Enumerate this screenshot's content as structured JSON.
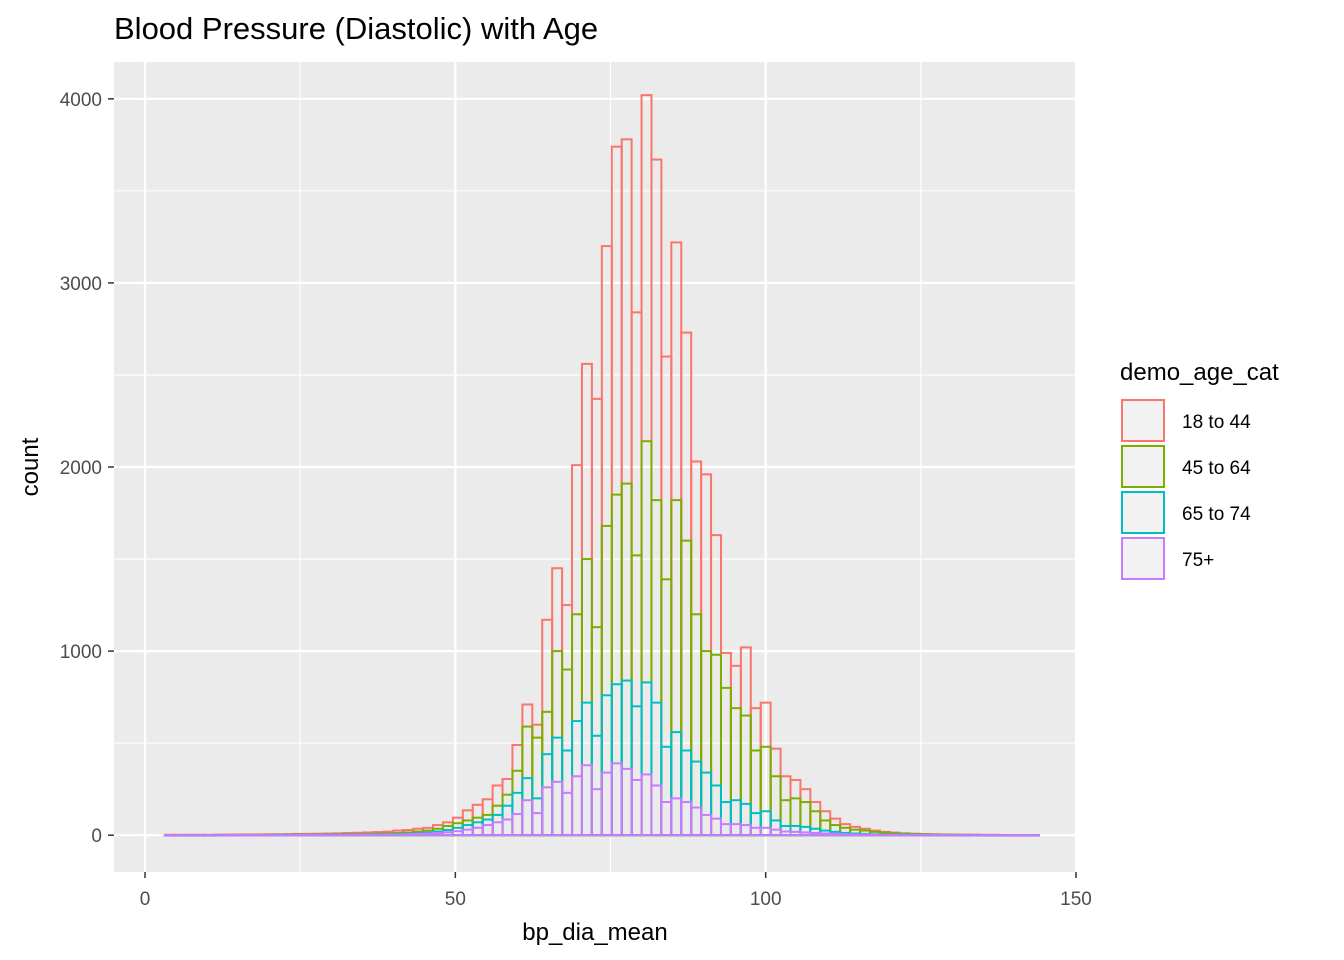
{
  "chart_data": {
    "type": "histogram",
    "title": "Blood Pressure (Diastolic) with Age",
    "xlabel": "bp_dia_mean",
    "ylabel": "count",
    "xlim": [
      -5,
      150
    ],
    "ylim": [
      -200,
      4200
    ],
    "x_ticks": [
      0,
      50,
      100,
      150
    ],
    "y_ticks": [
      0,
      1000,
      2000,
      3000,
      4000
    ],
    "x_tick_labels": [
      "0",
      "50",
      "100",
      "150"
    ],
    "y_tick_labels": [
      "0",
      "1000",
      "2000",
      "3000",
      "4000"
    ],
    "grid": true,
    "stacked": false,
    "fill": "none",
    "legend": {
      "title": "demo_age_cat",
      "position": "right"
    },
    "bin_start": 3.2,
    "bin_width": 1.6,
    "series": [
      {
        "name": "18 to 44",
        "color": "#F8766D",
        "values": [
          2,
          2,
          2,
          2,
          2,
          3,
          3,
          4,
          4,
          4,
          5,
          5,
          6,
          7,
          7,
          8,
          9,
          10,
          12,
          13,
          15,
          17,
          19,
          25,
          28,
          35,
          40,
          55,
          70,
          95,
          135,
          165,
          195,
          270,
          305,
          490,
          710,
          600,
          1170,
          1450,
          1250,
          2010,
          2560,
          2370,
          3200,
          3740,
          3780,
          2840,
          4020,
          3670,
          2600,
          3220,
          2730,
          2030,
          1960,
          1630,
          990,
          920,
          1020,
          690,
          720,
          470,
          320,
          300,
          250,
          180,
          130,
          90,
          60,
          45,
          35,
          25,
          18,
          14,
          10,
          8,
          6,
          5,
          4,
          3,
          3,
          2,
          2,
          2,
          1,
          1,
          1,
          1
        ]
      },
      {
        "name": "45 to 64",
        "color": "#7CAE00",
        "values": [
          1,
          1,
          1,
          1,
          1,
          1,
          2,
          2,
          2,
          2,
          3,
          3,
          3,
          4,
          4,
          5,
          5,
          6,
          6,
          7,
          8,
          9,
          10,
          12,
          15,
          20,
          25,
          35,
          50,
          65,
          80,
          95,
          110,
          160,
          220,
          350,
          590,
          530,
          670,
          1000,
          900,
          1200,
          1500,
          1130,
          1680,
          1850,
          1910,
          1520,
          2140,
          1820,
          1390,
          1820,
          1600,
          1200,
          1000,
          980,
          800,
          690,
          650,
          460,
          480,
          320,
          190,
          200,
          180,
          130,
          80,
          55,
          40,
          30,
          25,
          18,
          14,
          10,
          8,
          6,
          5,
          4,
          3,
          3,
          2,
          2,
          1,
          1,
          1,
          1,
          1,
          1
        ]
      },
      {
        "name": "65 to 74",
        "color": "#00BFC4",
        "values": [
          0,
          0,
          0,
          0,
          0,
          1,
          1,
          1,
          1,
          1,
          1,
          2,
          2,
          2,
          2,
          2,
          3,
          3,
          3,
          4,
          4,
          5,
          5,
          6,
          8,
          10,
          14,
          20,
          28,
          40,
          55,
          70,
          85,
          110,
          160,
          230,
          310,
          200,
          440,
          530,
          460,
          620,
          720,
          540,
          760,
          820,
          840,
          700,
          830,
          720,
          480,
          560,
          460,
          400,
          340,
          270,
          180,
          190,
          170,
          120,
          130,
          80,
          50,
          50,
          45,
          35,
          25,
          18,
          12,
          9,
          7,
          5,
          4,
          3,
          3,
          2,
          2,
          1,
          1,
          1,
          1,
          1,
          1,
          0,
          0,
          0,
          0,
          0
        ]
      },
      {
        "name": "75+",
        "color": "#C77CFF",
        "values": [
          0,
          0,
          0,
          0,
          0,
          0,
          1,
          1,
          1,
          1,
          1,
          1,
          1,
          1,
          2,
          2,
          2,
          2,
          2,
          3,
          3,
          3,
          4,
          4,
          5,
          7,
          9,
          12,
          16,
          22,
          30,
          40,
          55,
          70,
          85,
          115,
          190,
          120,
          260,
          290,
          230,
          320,
          380,
          250,
          340,
          390,
          360,
          300,
          330,
          270,
          180,
          200,
          180,
          150,
          110,
          90,
          60,
          60,
          55,
          40,
          40,
          30,
          20,
          18,
          15,
          12,
          9,
          7,
          5,
          4,
          3,
          3,
          2,
          2,
          1,
          1,
          1,
          1,
          1,
          0,
          0,
          0,
          0,
          0,
          0,
          0,
          0,
          0
        ]
      }
    ]
  }
}
